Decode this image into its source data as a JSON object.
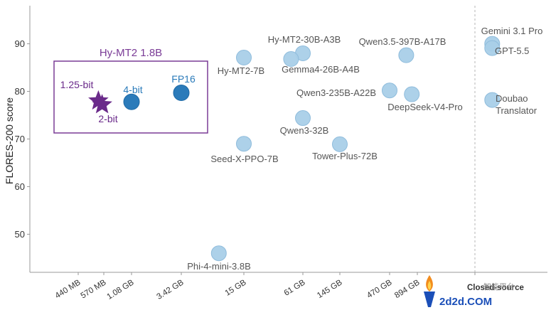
{
  "chart_data": {
    "type": "scatter",
    "ylabel": "FLORES-200 score",
    "ylim": [
      42,
      98
    ],
    "yticks": [
      50,
      60,
      70,
      80,
      90
    ],
    "x_categories": [
      "440 MB",
      "570 MB",
      "1.08 GB",
      "3.42 GB",
      "15 GB",
      "61 GB",
      "145 GB",
      "470 GB",
      "894 GB",
      "Closed-source"
    ],
    "group_title": "Hy-MT2 1.8B",
    "mt2_points": [
      {
        "label": "1.25-bit",
        "x": 0.4,
        "y": 78.0,
        "marker": "star",
        "color": "#6a2a8a"
      },
      {
        "label": "2-bit",
        "x": 0.6,
        "y": 77.2,
        "marker": "star",
        "color": "#6a2a8a"
      },
      {
        "label": "4-bit",
        "x": 2.0,
        "y": 77.8,
        "marker": "circle",
        "color": "#2b7bba"
      },
      {
        "label": "FP16",
        "x": 3.0,
        "y": 79.7,
        "marker": "circle",
        "color": "#2b7bba"
      }
    ],
    "points": [
      {
        "label": "Hy-MT2-7B",
        "x": 4.0,
        "y": 87.1
      },
      {
        "label": "Hy-MT2-30B-A3B",
        "x": 5.0,
        "y": 88.0
      },
      {
        "label": "Gemma4-26B-A4B",
        "x": 4.8,
        "y": 86.8
      },
      {
        "label": "Qwen3-32B",
        "x": 5.0,
        "y": 74.4
      },
      {
        "label": "Seed-X-PPO-7B",
        "x": 4.0,
        "y": 69.0
      },
      {
        "label": "Tower-Plus-72B",
        "x": 6.0,
        "y": 68.9
      },
      {
        "label": "Phi-4-mini-3.8B",
        "x": 3.6,
        "y": 46.0
      },
      {
        "label": "Qwen3.5-397B-A17B",
        "x": 7.6,
        "y": 87.6
      },
      {
        "label": "Qwen3-235B-A22B",
        "x": 7.0,
        "y": 80.2
      },
      {
        "label": "DeepSeek-V4-Pro",
        "x": 7.8,
        "y": 79.4
      },
      {
        "label": "Gemini 3.1 Pro",
        "x": 9.3,
        "y": 90.0
      },
      {
        "label": "GPT-5.5",
        "x": 9.3,
        "y": 89.1
      },
      {
        "label": "Doubao\nTranslator",
        "x": 9.3,
        "y": 78.2
      }
    ],
    "point_color": "#a9cfe8"
  },
  "watermark": {
    "text": "2d2d.COM",
    "overlay": "智能平台"
  }
}
